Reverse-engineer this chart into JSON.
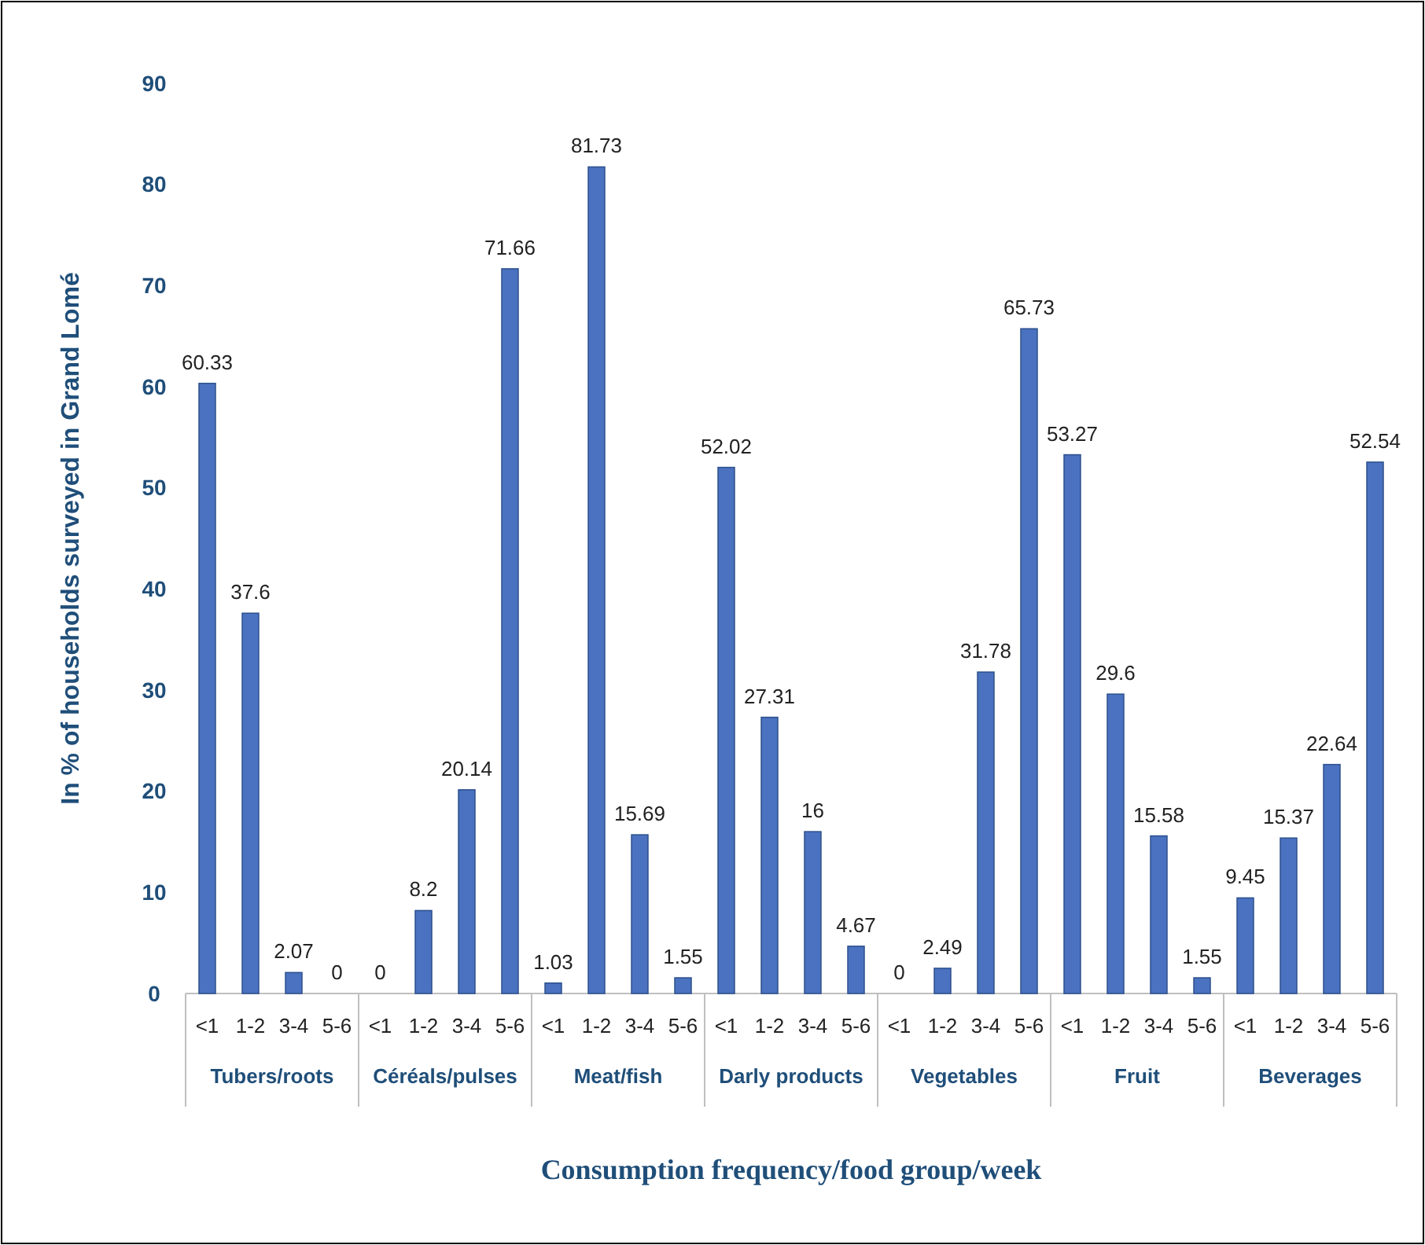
{
  "chart_data": {
    "type": "bar",
    "xlabel": "Consumption frequency/food group/week",
    "ylabel": "In % of households surveyed in Grand Lomé",
    "categories": [
      "<1",
      "1-2",
      "3-4",
      "5-6",
      "<1",
      "1-2",
      "3-4",
      "5-6",
      "<1",
      "1-2",
      "3-4",
      "5-6",
      "<1",
      "1-2",
      "3-4",
      "5-6",
      "<1",
      "1-2",
      "3-4",
      "5-6",
      "<1",
      "1-2",
      "3-4",
      "5-6",
      "<1",
      "1-2",
      "3-4",
      "5-6"
    ],
    "values": [
      60.33,
      37.6,
      2.07,
      0,
      0,
      8.2,
      20.14,
      71.66,
      1.03,
      81.73,
      15.69,
      1.55,
      52.02,
      27.31,
      16,
      4.67,
      0,
      2.49,
      31.78,
      65.73,
      53.27,
      29.6,
      15.58,
      1.55,
      9.45,
      15.37,
      22.64,
      52.54
    ],
    "color": "#4a72c0",
    "data_labels": true,
    "ylim": [
      0,
      90
    ],
    "yticks": [
      0,
      10,
      20,
      30,
      40,
      50,
      60,
      70,
      80,
      90
    ],
    "annotations": [
      "Tubers/roots",
      "Céréals/pulses",
      "Meat/fish",
      "Darly products",
      "Vegetables",
      "Fruit",
      "Beverages"
    ]
  }
}
